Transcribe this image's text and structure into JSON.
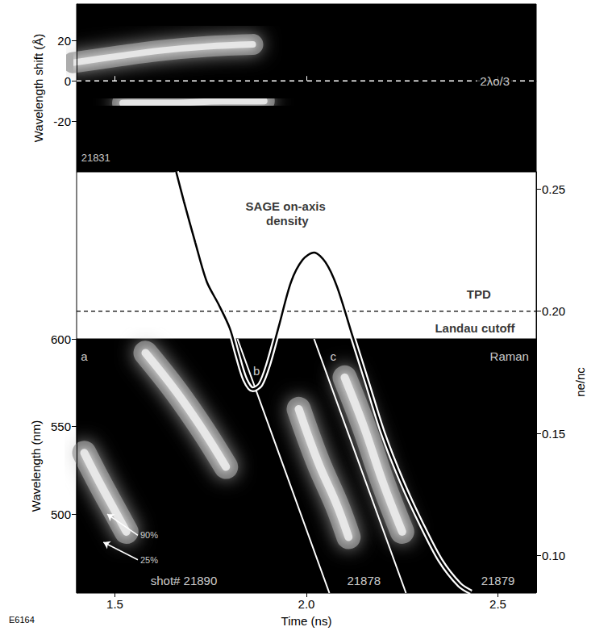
{
  "chart_data": {
    "type": "spectrogram",
    "xlabel": "Time (ns)",
    "xlim": [
      1.4,
      2.6
    ],
    "xticks": [
      1.5,
      {
        "value": 2,
        "label": "2.0"
      },
      2.5
    ],
    "figure_label": "E6164",
    "top_panel": {
      "ylabel": "Wavelength shift (Å)",
      "ylim": [
        -45,
        38
      ],
      "yticks": [
        -20,
        0,
        20
      ],
      "bands": [
        [
          [
            1.39,
            9
          ],
          [
            1.5,
            12
          ],
          [
            1.62,
            15
          ],
          [
            1.74,
            17
          ],
          [
            1.86,
            18
          ]
        ],
        [
          [
            1.52,
            -11
          ],
          [
            1.65,
            -11
          ],
          [
            1.78,
            -10
          ],
          [
            1.89,
            -10
          ]
        ]
      ],
      "reference": {
        "value": 0,
        "label": "2λo/3"
      },
      "labels": [
        {
          "text": "21831",
          "x": 1.45,
          "y": -38
        }
      ]
    },
    "density": {
      "y2label": "ne/nc",
      "y2lim": [
        0.085,
        0.257
      ],
      "y2ticks": [
        {
          "value": 0.1,
          "label": "0.10"
        },
        0.15,
        {
          "value": 0.2,
          "label": "0.20"
        },
        0.25
      ],
      "x": [
        1.66,
        1.68,
        1.71,
        1.74,
        1.77,
        1.8,
        1.82,
        1.84,
        1.86,
        1.88,
        1.9,
        1.93,
        1.96,
        1.99,
        2.02,
        2.05,
        2.08,
        2.12,
        2.16,
        2.2,
        2.25,
        2.3,
        2.35,
        2.4,
        2.43
      ],
      "values": [
        0.257,
        0.245,
        0.228,
        0.212,
        0.203,
        0.193,
        0.182,
        0.172,
        0.168,
        0.17,
        0.178,
        0.195,
        0.212,
        0.221,
        0.224,
        0.22,
        0.21,
        0.19,
        0.17,
        0.15,
        0.13,
        0.113,
        0.098,
        0.088,
        0.085
      ],
      "labels": [
        {
          "text": "SAGE on-axis density",
          "x": 1.95,
          "y": 0.24
        }
      ],
      "cutoff": {
        "value": 0.2,
        "labels": [
          {
            "text": "TPD",
            "x": 2.45,
            "y": 0.207
          },
          {
            "text": "Landau cutoff",
            "x": 2.44,
            "y": 0.193
          }
        ]
      }
    },
    "bottom_panel": {
      "ylabel": "Wavelength (nm)",
      "ylim": [
        455,
        600
      ],
      "yticks": [
        500,
        550,
        600
      ],
      "spectra": [
        [
          [
            1.42,
            535
          ],
          [
            1.46,
            518
          ],
          [
            1.5,
            502
          ],
          [
            1.53,
            490
          ]
        ],
        [
          [
            1.58,
            592
          ],
          [
            1.66,
            570
          ],
          [
            1.73,
            548
          ],
          [
            1.79,
            527
          ]
        ],
        [
          [
            1.98,
            560
          ],
          [
            2.03,
            530
          ],
          [
            2.08,
            505
          ],
          [
            2.11,
            487
          ]
        ],
        [
          [
            2.1,
            578
          ],
          [
            2.15,
            550
          ],
          [
            2.2,
            518
          ],
          [
            2.25,
            490
          ]
        ]
      ],
      "boundaries": [
        [
          [
            1.82,
            600
          ],
          [
            2.06,
            455
          ]
        ],
        [
          [
            2.02,
            600
          ],
          [
            2.26,
            455
          ]
        ]
      ],
      "labels": [
        {
          "text": "a",
          "x": 1.42,
          "y": 590
        },
        {
          "text": "b",
          "x": 1.87,
          "y": 582
        },
        {
          "text": "c",
          "x": 2.07,
          "y": 590
        },
        {
          "text": "Raman",
          "x": 2.53,
          "y": 590
        },
        {
          "text": "shot# 21890",
          "x": 1.68,
          "y": 462
        },
        {
          "text": "21878",
          "x": 2.15,
          "y": 462
        },
        {
          "text": "21879",
          "x": 2.5,
          "y": 462
        }
      ],
      "arrows": [
        {
          "text": "90%",
          "x": 1.56,
          "y": 488,
          "to": [
            1.48,
            500
          ]
        },
        {
          "text": "25%",
          "x": 1.56,
          "y": 474,
          "to": [
            1.47,
            484
          ]
        }
      ]
    }
  }
}
